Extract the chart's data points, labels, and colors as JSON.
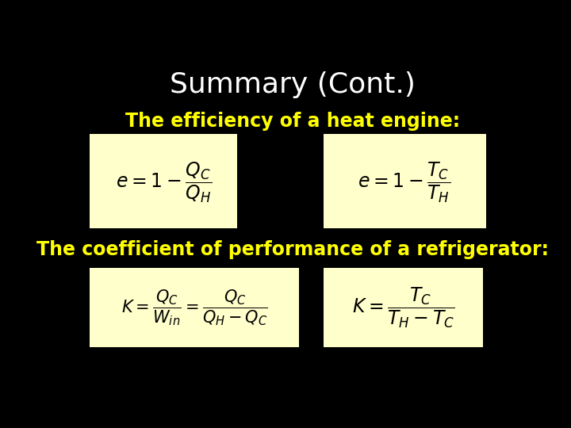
{
  "background_color": "#000000",
  "title": "Summary (Cont.)",
  "title_color": "#ffffff",
  "title_fontsize": 26,
  "subtitle1": "The efficiency of a heat engine:",
  "subtitle1_color": "#ffff00",
  "subtitle1_fontsize": 17,
  "subtitle2": "The coefficient of performance of a refrigerator:",
  "subtitle2_color": "#ffff00",
  "subtitle2_fontsize": 17,
  "box_color": "#ffffcc",
  "box1_formula": "$e = 1 - \\dfrac{Q_C}{Q_H}$",
  "box2_formula": "$e = 1 - \\dfrac{T_C}{T_H}$",
  "box3_formula": "$K = \\dfrac{Q_C}{W_{in}} = \\dfrac{Q_C}{Q_H - Q_C}$",
  "box4_formula": "$K = \\dfrac{T_C}{T_H - T_C}$",
  "formula_fontsize": 17,
  "formula_color": "#000000",
  "bottom_formula3": "$K = \\dfrac{Q_C}{W_{in}} = \\dfrac{Q_C}{Q_H - Q_C}$",
  "bottom_formula4": "$K = \\dfrac{T_C}{T_H - T_C}$",
  "bottom_formula_color": "#ffff00"
}
